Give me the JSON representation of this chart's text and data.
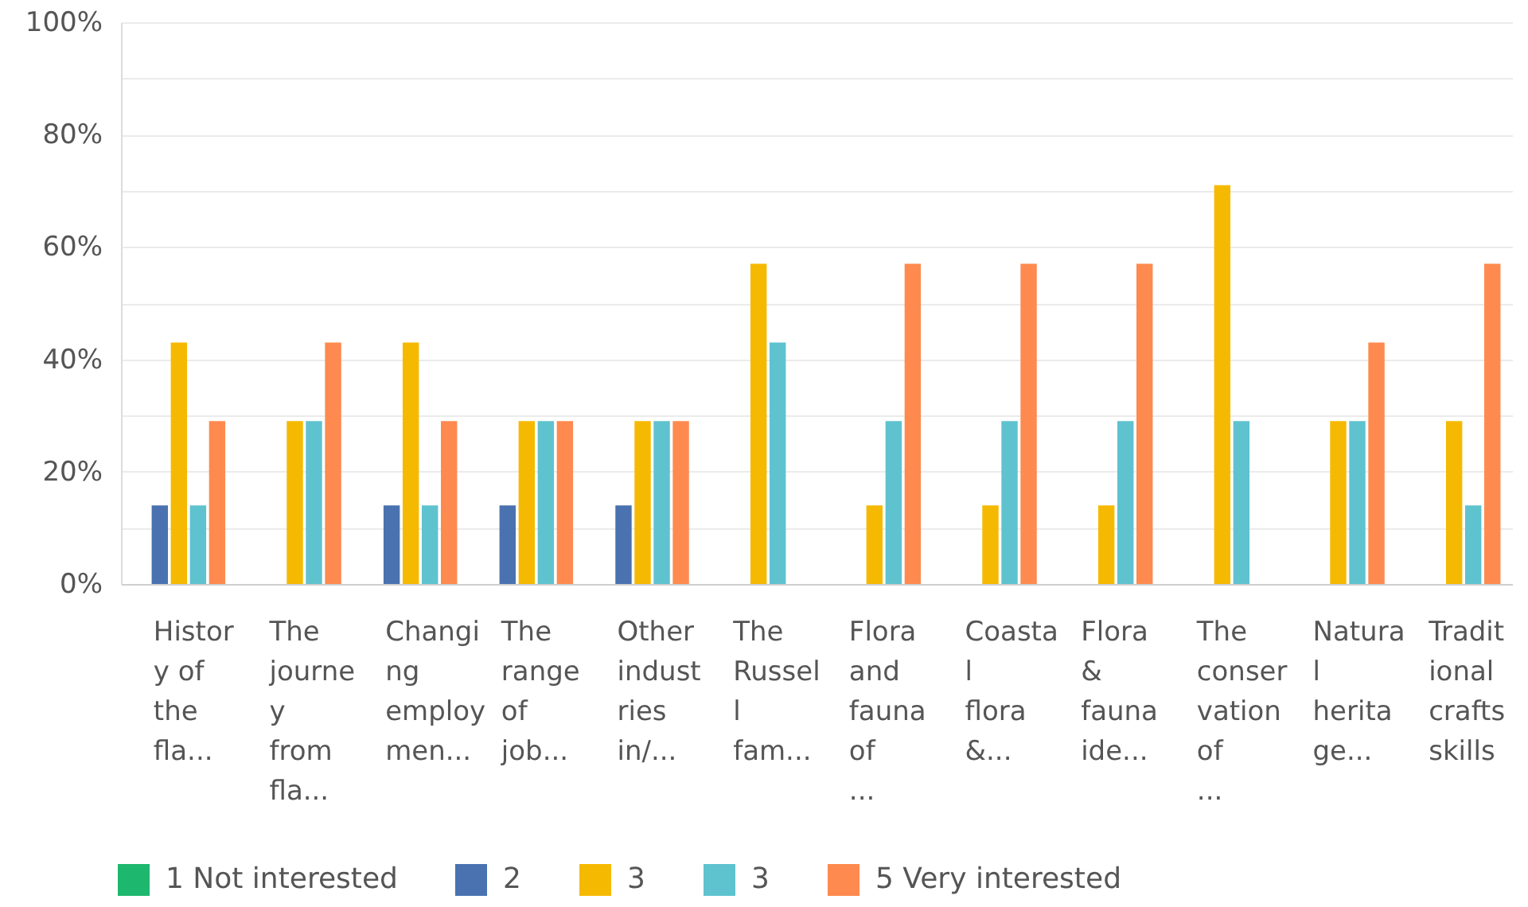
{
  "chart_data": {
    "type": "bar",
    "categories": [
      "Histor\ny of\nthe\nfla...",
      "The\njourne\ny\nfrom\nfla...",
      "Changi\nng\nemploy\nmen...",
      "The\nrange\nof\njob...",
      "Other\nindust\nries\nin/...",
      "The\nRussel\nl\nfam...",
      "Flora\nand\nfauna\nof\n...",
      "Coasta\nl\nflora\n&...",
      "Flora\n&\nfauna\nide...",
      "The\nconser\nvation\nof\n...",
      "Natura\nl\nherita\nge...",
      "Tradit\nional\ncrafts\nskills"
    ],
    "series": [
      {
        "name": "1 Not interested",
        "color": "#1db76e",
        "values": [
          0,
          0,
          0,
          0,
          0,
          0,
          0,
          0,
          0,
          0,
          0,
          0
        ]
      },
      {
        "name": "2",
        "color": "#4a72b0",
        "values": [
          14,
          0,
          14,
          14,
          14,
          0,
          0,
          0,
          0,
          0,
          0,
          0
        ]
      },
      {
        "name": "3",
        "color": "#f6b902",
        "values": [
          43,
          29,
          43,
          29,
          29,
          57,
          14,
          14,
          14,
          71,
          29,
          29
        ]
      },
      {
        "name": "3",
        "color": "#5fc2cf",
        "values": [
          14,
          29,
          14,
          29,
          29,
          43,
          29,
          29,
          29,
          29,
          29,
          14
        ]
      },
      {
        "name": "5 Very interested",
        "color": "#fe8a4f",
        "values": [
          29,
          43,
          29,
          29,
          29,
          0,
          57,
          57,
          57,
          0,
          43,
          57
        ]
      }
    ],
    "ylim": [
      0,
      100
    ],
    "yticks": [
      {
        "value": 0,
        "label": "0%"
      },
      {
        "value": 10,
        "label": null
      },
      {
        "value": 20,
        "label": "20%"
      },
      {
        "value": 30,
        "label": null
      },
      {
        "value": 40,
        "label": "40%"
      },
      {
        "value": 50,
        "label": null
      },
      {
        "value": 60,
        "label": "60%"
      },
      {
        "value": 70,
        "label": null
      },
      {
        "value": 80,
        "label": "80%"
      },
      {
        "value": 90,
        "label": null
      },
      {
        "value": 100,
        "label": "100%"
      }
    ],
    "grid": "y",
    "legend": "bottom"
  }
}
